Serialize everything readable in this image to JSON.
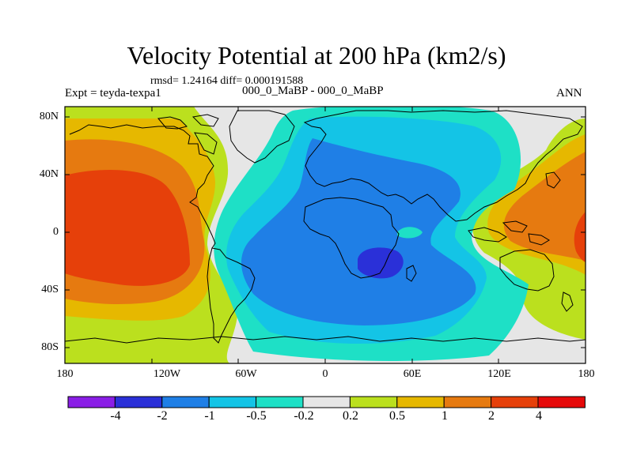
{
  "title": "Velocity Potential at 200 hPa (km2/s)",
  "stats": "rmsd= 1.24164 diff= 0.000191588",
  "experiment": "Expt = teyda-texpa1",
  "period": "000_0_MaBP - 000_0_MaBP",
  "season": "ANN",
  "y_axis_labels": [
    "80N",
    "40N",
    "0",
    "40S",
    "80S"
  ],
  "x_axis_labels": [
    "180",
    "120W",
    "60W",
    "0",
    "60E",
    "120E",
    "180"
  ],
  "colorbar": {
    "labels": [
      "-4",
      "-2",
      "-1",
      "-0.5",
      "-0.2",
      "0.2",
      "0.5",
      "1",
      "2",
      "4"
    ],
    "colors": [
      "#8a1ee6",
      "#2a30d8",
      "#1f7fe6",
      "#14c4e6",
      "#1ee0c6",
      "#e6e6e6",
      "#bbe01e",
      "#e6b800",
      "#e67a10",
      "#e6400a",
      "#e60a0a"
    ]
  },
  "fill_colors": {
    "land_none": "#e6e6e6",
    "pos_02": "#bbe01e",
    "pos_05": "#e6b800",
    "pos_1": "#e67a10",
    "pos_2": "#e6400a",
    "neg_02": "#1ee0c6",
    "neg_05": "#14c4e6",
    "neg_1": "#1f7fe6",
    "neg_2": "#2a30d8"
  }
}
